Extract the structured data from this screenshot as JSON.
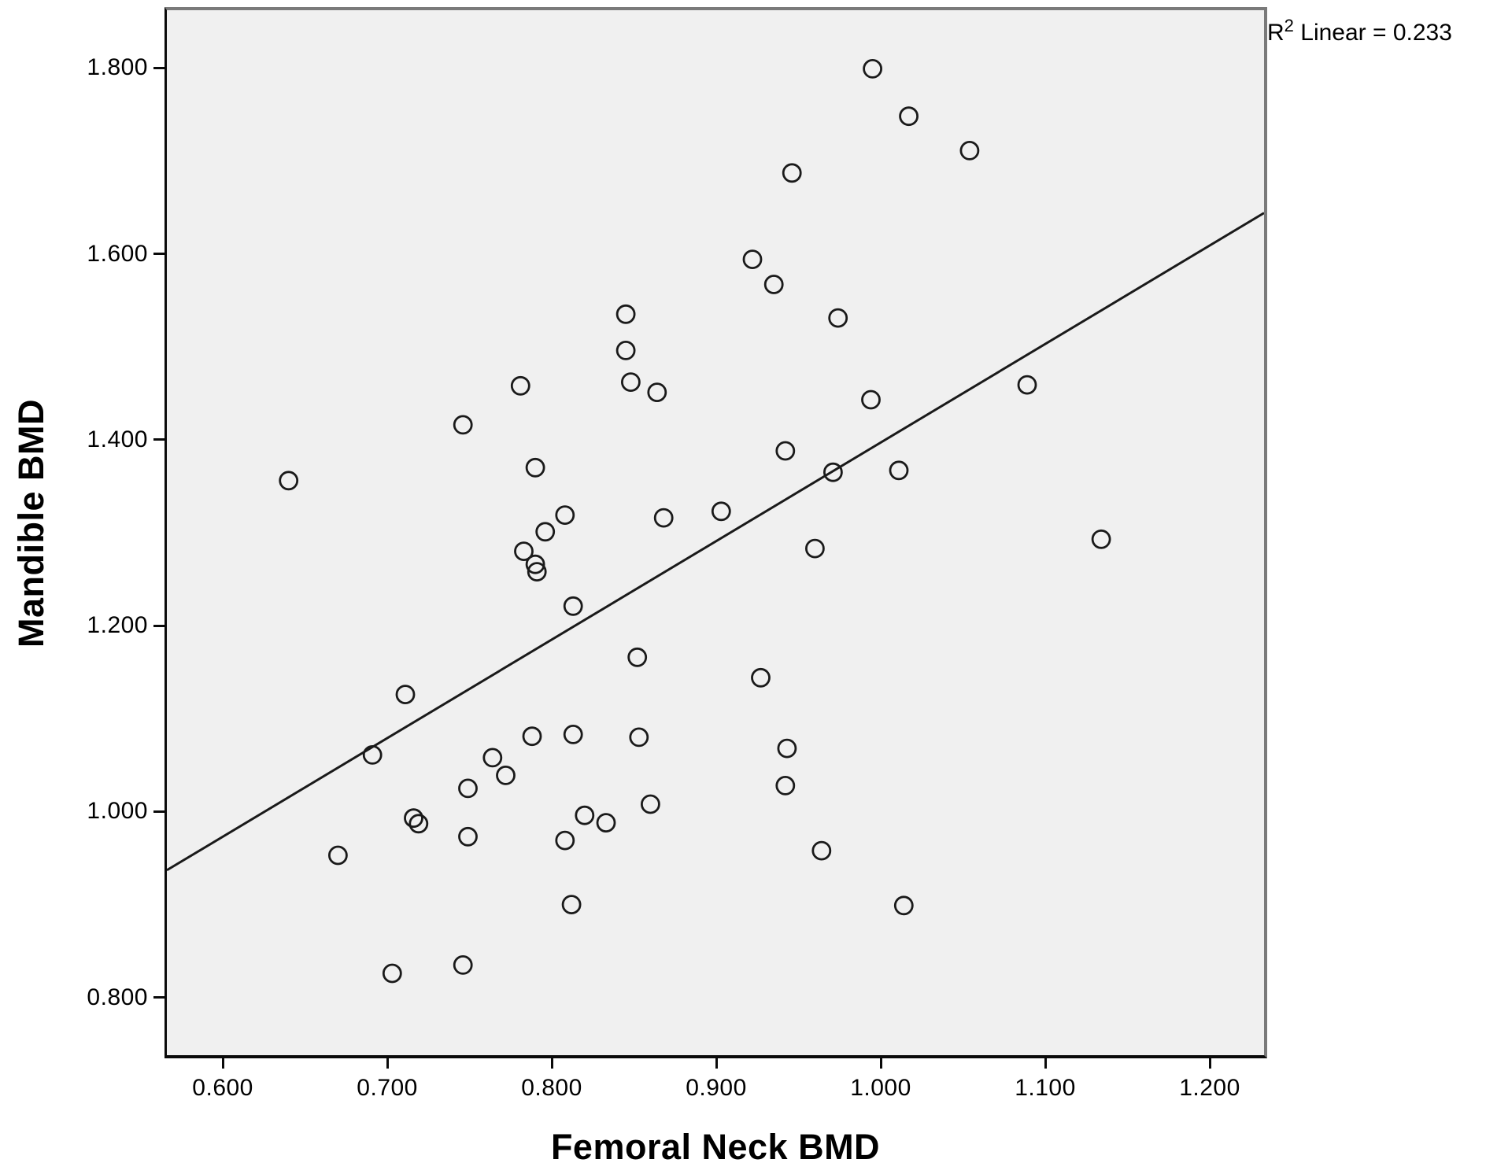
{
  "annotation": {
    "base": "R",
    "sup": "2",
    "rest": " Linear = 0.233",
    "text": "R² Linear = 0.233"
  },
  "chart_data": {
    "type": "scatter",
    "title": "",
    "xlabel": "Femoral Neck BMD",
    "ylabel": "Mandible BMD",
    "xlim": [
      0.566,
      1.233
    ],
    "ylim": [
      0.738,
      1.862
    ],
    "grid": false,
    "legend": false,
    "x_ticks": {
      "values": [
        0.6,
        0.7,
        0.8,
        0.9,
        1.0,
        1.1,
        1.2
      ],
      "labels": [
        "0.600",
        "0.700",
        "0.800",
        "0.900",
        "1.000",
        "1.100",
        "1.200"
      ]
    },
    "y_ticks": {
      "values": [
        0.8,
        1.0,
        1.2,
        1.4,
        1.6,
        1.8
      ],
      "labels": [
        "0.800",
        "1.000",
        "1.200",
        "1.400",
        "1.600",
        "1.800"
      ]
    },
    "marker": {
      "shape": "open-circle",
      "radius_px": 11,
      "stroke": "#1a1a1a",
      "stroke_width": 2.8,
      "fill": "none"
    },
    "regression_line": {
      "x1": 0.566,
      "y1": 0.937,
      "x2": 1.233,
      "y2": 1.644,
      "r2": 0.233,
      "color": "#1a1a1a",
      "width": 3
    },
    "points": [
      [
        0.995,
        1.799
      ],
      [
        1.017,
        1.748
      ],
      [
        1.054,
        1.711
      ],
      [
        0.946,
        1.687
      ],
      [
        0.922,
        1.594
      ],
      [
        0.935,
        1.567
      ],
      [
        0.845,
        1.535
      ],
      [
        0.974,
        1.531
      ],
      [
        0.845,
        1.496
      ],
      [
        0.848,
        1.462
      ],
      [
        1.089,
        1.459
      ],
      [
        0.781,
        1.458
      ],
      [
        0.864,
        1.451
      ],
      [
        0.994,
        1.443
      ],
      [
        0.746,
        1.416
      ],
      [
        0.942,
        1.388
      ],
      [
        0.79,
        1.37
      ],
      [
        1.011,
        1.367
      ],
      [
        0.971,
        1.365
      ],
      [
        0.64,
        1.356
      ],
      [
        0.903,
        1.323
      ],
      [
        0.808,
        1.319
      ],
      [
        0.868,
        1.316
      ],
      [
        0.796,
        1.301
      ],
      [
        1.134,
        1.293
      ],
      [
        0.96,
        1.283
      ],
      [
        0.783,
        1.28
      ],
      [
        0.79,
        1.266
      ],
      [
        0.791,
        1.258
      ],
      [
        0.813,
        1.221
      ],
      [
        0.852,
        1.166
      ],
      [
        0.927,
        1.144
      ],
      [
        0.711,
        1.126
      ],
      [
        0.813,
        1.083
      ],
      [
        0.788,
        1.081
      ],
      [
        0.853,
        1.08
      ],
      [
        0.943,
        1.068
      ],
      [
        0.691,
        1.061
      ],
      [
        0.764,
        1.058
      ],
      [
        0.772,
        1.039
      ],
      [
        0.942,
        1.028
      ],
      [
        0.749,
        1.025
      ],
      [
        0.86,
        1.008
      ],
      [
        0.82,
        0.996
      ],
      [
        0.716,
        0.993
      ],
      [
        0.833,
        0.988
      ],
      [
        0.719,
        0.987
      ],
      [
        0.749,
        0.973
      ],
      [
        0.808,
        0.969
      ],
      [
        0.964,
        0.958
      ],
      [
        0.67,
        0.953
      ],
      [
        0.812,
        0.9
      ],
      [
        1.014,
        0.899
      ],
      [
        0.746,
        0.835
      ],
      [
        0.703,
        0.826
      ]
    ],
    "colors": {
      "plot_bg": "#f0f0f0",
      "frame_top_right": "#7a7a7a",
      "axis": "#0a0a0a",
      "marker": "#1a1a1a",
      "page_bg": "#ffffff"
    }
  }
}
